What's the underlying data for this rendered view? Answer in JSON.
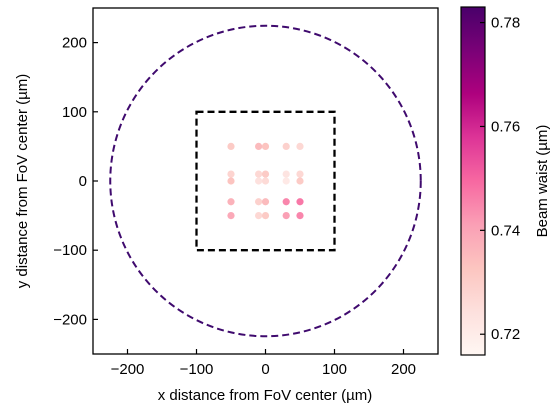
{
  "chart_data": {
    "type": "scatter",
    "title": "",
    "xlabel": "x distance from FoV center (µm)",
    "ylabel": "y distance from FoV center (µm)",
    "xlim": [
      -250,
      250
    ],
    "ylim": [
      -250,
      250
    ],
    "xticks": [
      -200,
      -100,
      0,
      100,
      200
    ],
    "yticks": [
      -200,
      -100,
      0,
      100,
      200
    ],
    "colorbar": {
      "label": "Beam waist (µm)",
      "range": [
        0.716,
        0.783
      ],
      "ticks": [
        0.72,
        0.74,
        0.76,
        0.78
      ],
      "colormap": "RdPu",
      "stops": [
        "#fff7f3",
        "#fde0dd",
        "#fcc5c0",
        "#fa9fb5",
        "#f768a1",
        "#dd3497",
        "#ae017e",
        "#7a0177",
        "#49006a"
      ]
    },
    "overlays": [
      {
        "shape": "circle",
        "center": [
          0,
          0
        ],
        "radius": 225,
        "style": "dashed",
        "color": "#3f0a6e"
      },
      {
        "shape": "square",
        "x": [
          -100,
          100
        ],
        "y": [
          -100,
          100
        ],
        "style": "dashed",
        "color": "#000000"
      }
    ],
    "points": [
      {
        "x": -50,
        "y": 50,
        "waist": 0.731
      },
      {
        "x": -10,
        "y": 50,
        "waist": 0.735
      },
      {
        "x": 0,
        "y": 50,
        "waist": 0.733
      },
      {
        "x": 30,
        "y": 50,
        "waist": 0.729
      },
      {
        "x": 50,
        "y": 50,
        "waist": 0.727
      },
      {
        "x": -50,
        "y": 10,
        "waist": 0.728
      },
      {
        "x": -10,
        "y": 10,
        "waist": 0.727
      },
      {
        "x": 0,
        "y": 10,
        "waist": 0.731
      },
      {
        "x": 30,
        "y": 10,
        "waist": 0.723
      },
      {
        "x": 50,
        "y": 10,
        "waist": 0.727
      },
      {
        "x": -50,
        "y": 0,
        "waist": 0.733
      },
      {
        "x": -10,
        "y": 0,
        "waist": 0.724
      },
      {
        "x": 0,
        "y": 0,
        "waist": 0.726
      },
      {
        "x": 30,
        "y": 0,
        "waist": 0.721
      },
      {
        "x": 50,
        "y": 0,
        "waist": 0.731
      },
      {
        "x": -50,
        "y": -30,
        "waist": 0.737
      },
      {
        "x": -10,
        "y": -30,
        "waist": 0.729
      },
      {
        "x": 0,
        "y": -30,
        "waist": 0.735
      },
      {
        "x": 30,
        "y": -30,
        "waist": 0.745
      },
      {
        "x": 50,
        "y": -30,
        "waist": 0.747
      },
      {
        "x": -50,
        "y": -50,
        "waist": 0.739
      },
      {
        "x": -10,
        "y": -50,
        "waist": 0.727
      },
      {
        "x": 0,
        "y": -50,
        "waist": 0.731
      },
      {
        "x": 30,
        "y": -50,
        "waist": 0.741
      },
      {
        "x": 50,
        "y": -50,
        "waist": 0.745
      }
    ]
  }
}
